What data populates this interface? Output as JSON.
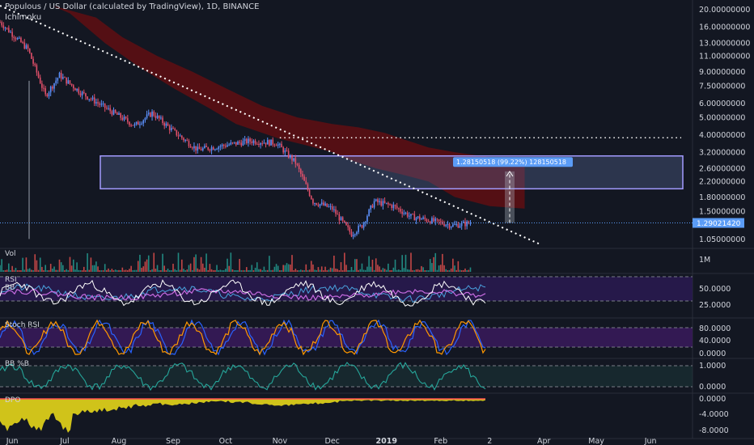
{
  "header": {
    "title": "Populous / US Dollar (calculated by TradingView), 1D, BINANCE",
    "indicator": "Ichimoku"
  },
  "panels": {
    "vol": "Vol",
    "rsi": "RSI",
    "bb": "BB",
    "stoch": "Stoch RSI",
    "bbp": "BB %B",
    "dpo": "DPO"
  },
  "measure_label": "1.28150518 (99.22%) 128150518",
  "price_label": "1.29021420",
  "colors": {
    "background": "#131722",
    "up": "#5b8ff9",
    "down": "#e0506a",
    "cloud": "#8b0a0a",
    "rsi_fill": "#2c1a55",
    "stoch_fill": "#3a1a5c",
    "dpo_fill": "#e5d619",
    "bbp_line": "#26a69a",
    "accent": "#5b9cf6"
  },
  "chart_data": [
    {
      "type": "line",
      "title": "Populous / US Dollar (calculated by TradingView), 1D, BINANCE",
      "y_scale": "log",
      "ylim": [
        0.95,
        21
      ],
      "y_ticks": [
        "20.00000000",
        "16.00000000",
        "13.00000000",
        "11.00000000",
        "9.00000000",
        "7.50000000",
        "6.00000000",
        "5.00000000",
        "4.00000000",
        "3.20000000",
        "2.60000000",
        "2.20000000",
        "1.80000000",
        "1.50000000",
        "1.05000000"
      ],
      "x_ticks": [
        "Jun",
        "Jul",
        "Aug",
        "Sep",
        "Oct",
        "Nov",
        "Dec",
        "2019",
        "Feb",
        "2",
        "Apr",
        "May",
        "Jun"
      ],
      "approx_close": [
        {
          "date": "2018-05-25",
          "value": 17.0
        },
        {
          "date": "2018-06-10",
          "value": 12.0
        },
        {
          "date": "2018-06-20",
          "value": 6.6
        },
        {
          "date": "2018-06-28",
          "value": 8.6
        },
        {
          "date": "2018-07-10",
          "value": 6.9
        },
        {
          "date": "2018-07-25",
          "value": 5.6
        },
        {
          "date": "2018-08-10",
          "value": 4.5
        },
        {
          "date": "2018-08-20",
          "value": 5.3
        },
        {
          "date": "2018-09-01",
          "value": 4.2
        },
        {
          "date": "2018-09-15",
          "value": 3.3
        },
        {
          "date": "2018-10-01",
          "value": 3.5
        },
        {
          "date": "2018-10-15",
          "value": 3.7
        },
        {
          "date": "2018-10-30",
          "value": 3.6
        },
        {
          "date": "2018-11-10",
          "value": 2.8
        },
        {
          "date": "2018-11-20",
          "value": 1.7
        },
        {
          "date": "2018-12-01",
          "value": 1.55
        },
        {
          "date": "2018-12-12",
          "value": 1.12
        },
        {
          "date": "2018-12-18",
          "value": 1.25
        },
        {
          "date": "2018-12-25",
          "value": 1.7
        },
        {
          "date": "2019-01-05",
          "value": 1.6
        },
        {
          "date": "2019-01-15",
          "value": 1.4
        },
        {
          "date": "2019-01-28",
          "value": 1.32
        },
        {
          "date": "2019-02-08",
          "value": 1.25
        },
        {
          "date": "2019-02-18",
          "value": 1.29
        }
      ],
      "trendline": [
        {
          "date": "2018-05-25",
          "value": 21
        },
        {
          "date": "2019-03-30",
          "value": 0.98
        }
      ],
      "resistance": 3.85,
      "zone": [
        2.0,
        3.05
      ],
      "last_price": 1.2902142
    },
    {
      "type": "bar",
      "title": "Vol",
      "y_ticks": [
        "1M"
      ]
    },
    {
      "type": "line",
      "title": "RSI",
      "y_ticks": [
        "50.0000",
        "25.0000"
      ]
    },
    {
      "type": "line",
      "title": "Stoch RSI",
      "y_ticks": [
        "80.0000",
        "40.0000",
        "0.0000"
      ]
    },
    {
      "type": "line",
      "title": "BB %B",
      "y_ticks": [
        "1.0000",
        "0.0000"
      ]
    },
    {
      "type": "area",
      "title": "DPO",
      "y_ticks": [
        "0.0000",
        "-4.0000",
        "-8.0000"
      ]
    }
  ]
}
